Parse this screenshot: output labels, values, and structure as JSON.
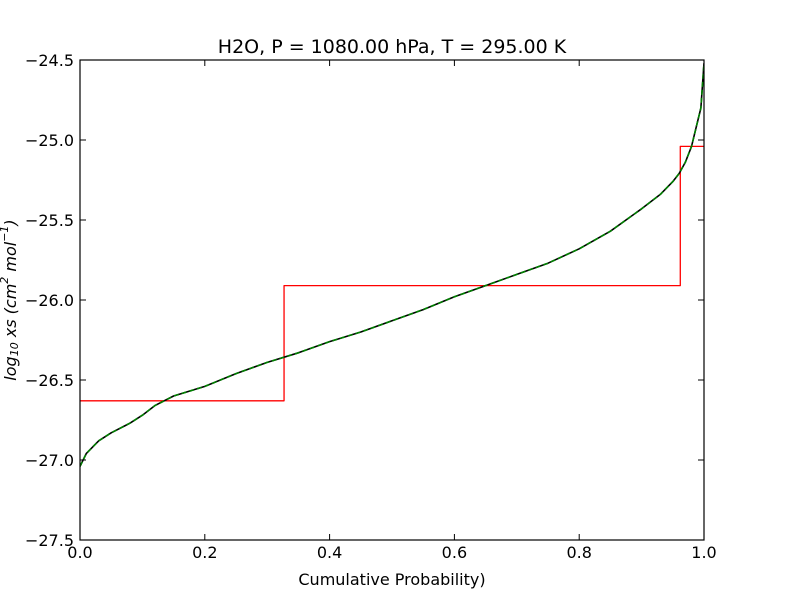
{
  "chart_data": {
    "type": "line",
    "title": "H2O, P = 1080.00 hPa, T = 295.00 K",
    "xlabel": "Cumulative Probability)",
    "ylabel": "log10 xs (cm^2 mol^-1)",
    "xlim": [
      0.0,
      1.0
    ],
    "ylim": [
      -27.5,
      -24.5
    ],
    "xticks": [
      0.0,
      0.2,
      0.4,
      0.6,
      0.8,
      1.0
    ],
    "xtick_labels": [
      "0.0",
      "0.2",
      "0.4",
      "0.6",
      "0.8",
      "1.0"
    ],
    "yticks": [
      -27.5,
      -27.0,
      -26.5,
      -26.0,
      -25.5,
      -25.0,
      -24.5
    ],
    "ytick_labels": [
      "−27.5",
      "−27.0",
      "−26.5",
      "−26.0",
      "−25.5",
      "−25.0",
      "−24.5"
    ],
    "grid": false,
    "series": [
      {
        "color": "#000000",
        "style": "line",
        "x": [
          0.0,
          0.005,
          0.01,
          0.02,
          0.03,
          0.05,
          0.08,
          0.1,
          0.12,
          0.15,
          0.2,
          0.25,
          0.3,
          0.35,
          0.4,
          0.45,
          0.5,
          0.55,
          0.6,
          0.65,
          0.7,
          0.75,
          0.8,
          0.85,
          0.9,
          0.93,
          0.95,
          0.96,
          0.97,
          0.98,
          0.99,
          0.995,
          1.0
        ],
        "y": [
          -27.04,
          -27.0,
          -26.96,
          -26.92,
          -26.88,
          -26.83,
          -26.77,
          -26.72,
          -26.66,
          -26.6,
          -26.54,
          -26.46,
          -26.39,
          -26.33,
          -26.26,
          -26.2,
          -26.13,
          -26.06,
          -25.98,
          -25.91,
          -25.84,
          -25.77,
          -25.68,
          -25.57,
          -25.43,
          -25.34,
          -25.26,
          -25.21,
          -25.14,
          -25.04,
          -24.88,
          -24.8,
          -24.52
        ]
      },
      {
        "color": "#008000",
        "style": "dashed",
        "x": [
          0.0,
          0.005,
          0.01,
          0.02,
          0.03,
          0.05,
          0.08,
          0.1,
          0.12,
          0.15,
          0.2,
          0.25,
          0.3,
          0.35,
          0.4,
          0.45,
          0.5,
          0.55,
          0.6,
          0.65,
          0.7,
          0.75,
          0.8,
          0.85,
          0.9,
          0.93,
          0.95,
          0.96,
          0.97,
          0.98,
          0.99,
          0.995,
          1.0
        ],
        "y": [
          -27.04,
          -27.0,
          -26.96,
          -26.92,
          -26.88,
          -26.83,
          -26.77,
          -26.72,
          -26.66,
          -26.6,
          -26.54,
          -26.46,
          -26.39,
          -26.33,
          -26.26,
          -26.2,
          -26.13,
          -26.06,
          -25.98,
          -25.91,
          -25.84,
          -25.77,
          -25.68,
          -25.57,
          -25.43,
          -25.34,
          -25.26,
          -25.21,
          -25.14,
          -25.04,
          -24.88,
          -24.8,
          -24.52
        ]
      },
      {
        "color": "#ff0000",
        "style": "step",
        "x": [
          0.0,
          0.327,
          0.327,
          0.962,
          0.962,
          1.0
        ],
        "y": [
          -26.63,
          -26.63,
          -25.91,
          -25.91,
          -25.04,
          -25.04
        ]
      }
    ]
  }
}
